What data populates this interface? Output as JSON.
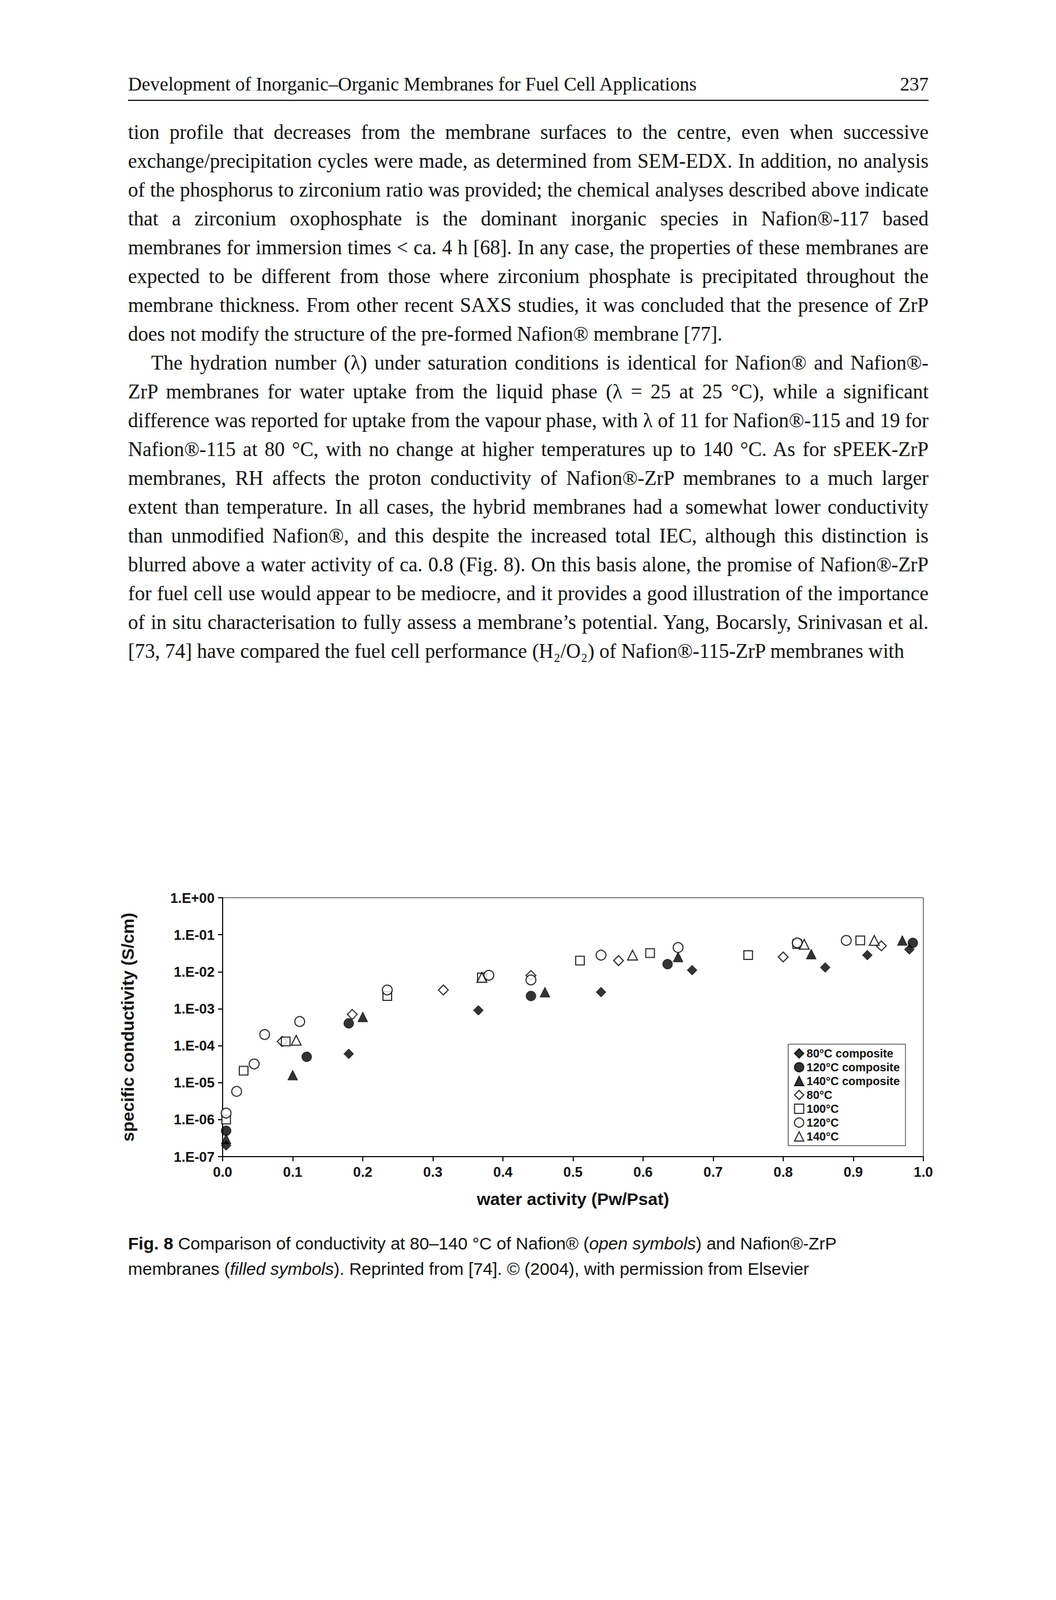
{
  "header": {
    "title": "Development of Inorganic–Organic Membranes for Fuel Cell Applications",
    "page": "237"
  },
  "paragraphs": [
    "tion profile that decreases from the membrane surfaces to the centre, even when successive exchange/precipitation cycles were made, as determined from SEM-EDX. In addition, no analysis of the phosphorus to zirconium ratio was provided; the chemical analyses described above indicate that a zirconium oxophosphate is the dominant inorganic species in Nafion®-117 based membranes for immersion times < ca. 4 h [68]. In any case, the properties of these membranes are expected to be different from those where zirconium phosphate is precipitated throughout the membrane thickness. From other recent SAXS studies, it was concluded that the presence of ZrP does not modify the structure of the pre-formed Nafion® membrane [77].",
    "The hydration number (λ) under saturation conditions is identical for Nafion® and Nafion®-ZrP membranes for water uptake from the liquid phase (λ = 25 at 25 °C), while a significant difference was reported for uptake from the vapour phase, with λ of 11 for Nafion®-115 and 19 for Nafion®-115 at 80 °C, with no change at higher temperatures up to 140 °C. As for sPEEK-ZrP membranes, RH affects the proton conductivity of Nafion®-ZrP membranes to a much larger extent than temperature. In all cases, the hybrid membranes had a somewhat lower conductivity than unmodified Nafion®, and this despite the increased total IEC, although this distinction is blurred above a water activity of ca. 0.8 (Fig. 8). On this basis alone, the promise of Nafion®-ZrP for fuel cell use would appear to be mediocre, and it provides a good illustration of the importance of in situ characterisation to fully assess a membrane’s potential. Yang, Bocarsly, Srinivasan et al. [73, 74] have compared the fuel cell performance (H₂/O₂) of Nafion®-115-ZrP membranes with"
  ],
  "chart_data": {
    "type": "scatter",
    "x_label": "water activity (Pw/Psat)",
    "y_label": "specific conductivity (S/cm)",
    "log": "y",
    "grid": false,
    "legend": "lower right",
    "xlim": [
      0,
      1
    ],
    "xticks": [
      {
        "value": 0,
        "label": "0.0"
      },
      0.1,
      0.2,
      0.3,
      0.4,
      0.5,
      0.6,
      0.7,
      0.8,
      0.9,
      {
        "value": 1,
        "label": "1.0"
      }
    ],
    "ylim": [
      1e-07,
      1
    ],
    "yticks": [
      {
        "value": 1,
        "label": "1.E+00"
      },
      {
        "value": 0.1,
        "label": "1.E-01"
      },
      {
        "value": 0.01,
        "label": "1.E-02"
      },
      {
        "value": 0.001,
        "label": "1.E-03"
      },
      {
        "value": 0.0001,
        "label": "1.E-04"
      },
      {
        "value": 1e-05,
        "label": "1.E-05"
      },
      {
        "value": 1e-06,
        "label": "1.E-06"
      },
      {
        "value": 1e-07,
        "label": "1.E-07"
      }
    ],
    "series": [
      {
        "name": "80°C composite",
        "marker": "filled diamond",
        "color": "#000000",
        "x": [
          0.005,
          0.18,
          0.365,
          0.54,
          0.67,
          0.86,
          0.92,
          0.98
        ],
        "values": [
          2e-07,
          6e-05,
          0.0009,
          0.0028,
          0.011,
          0.013,
          0.028,
          0.04
        ]
      },
      {
        "name": "120°C composite",
        "marker": "filled circle",
        "color": "#000000",
        "x": [
          0.005,
          0.12,
          0.18,
          0.44,
          0.635,
          0.985
        ],
        "values": [
          5e-07,
          5e-05,
          0.0004,
          0.0022,
          0.016,
          0.06
        ]
      },
      {
        "name": "140°C composite",
        "marker": "filled triangle",
        "color": "#000000",
        "x": [
          0.005,
          0.1,
          0.2,
          0.46,
          0.65,
          0.84,
          0.97
        ],
        "values": [
          3e-07,
          1.6e-05,
          0.0006,
          0.0028,
          0.025,
          0.03,
          0.07
        ]
      },
      {
        "name": "80°C",
        "marker": "open diamond",
        "color": "#000000",
        "x": [
          0.085,
          0.185,
          0.315,
          0.44,
          0.565,
          0.8,
          0.94
        ],
        "values": [
          0.00013,
          0.0007,
          0.0032,
          0.0079,
          0.02,
          0.025,
          0.05
        ]
      },
      {
        "name": "100°C",
        "marker": "open rect",
        "color": "#000000",
        "x": [
          0.005,
          0.03,
          0.09,
          0.235,
          0.37,
          0.51,
          0.61,
          0.75,
          0.82,
          0.91
        ],
        "values": [
          1e-06,
          2.1e-05,
          0.00013,
          0.0022,
          0.007,
          0.02,
          0.032,
          0.028,
          0.056,
          0.07
        ]
      },
      {
        "name": "120°C",
        "marker": "open circle",
        "color": "#000000",
        "x": [
          0.005,
          0.02,
          0.045,
          0.06,
          0.11,
          0.235,
          0.38,
          0.44,
          0.54,
          0.65,
          0.82,
          0.89
        ],
        "values": [
          1.5e-06,
          5.8e-06,
          3.2e-05,
          0.0002,
          0.00045,
          0.0032,
          0.008,
          0.006,
          0.028,
          0.045,
          0.06,
          0.07
        ]
      },
      {
        "name": "140°C",
        "marker": "open triangle",
        "color": "#000000",
        "x": [
          0.105,
          0.37,
          0.585,
          0.83,
          0.93
        ],
        "values": [
          0.00014,
          0.007,
          0.028,
          0.055,
          0.07
        ]
      }
    ]
  },
  "caption": [
    {
      "text": "Fig. 8",
      "bold": true
    },
    {
      "text": " Comparison of conductivity at 80–140 °C of Nafion® ("
    },
    {
      "text": "open symbols",
      "italic": true
    },
    {
      "text": ") and Nafion®-ZrP membranes ("
    },
    {
      "text": "filled symbols",
      "italic": true
    },
    {
      "text": "). Reprinted from [74]. © (2004), with permission from Elsevier"
    }
  ]
}
